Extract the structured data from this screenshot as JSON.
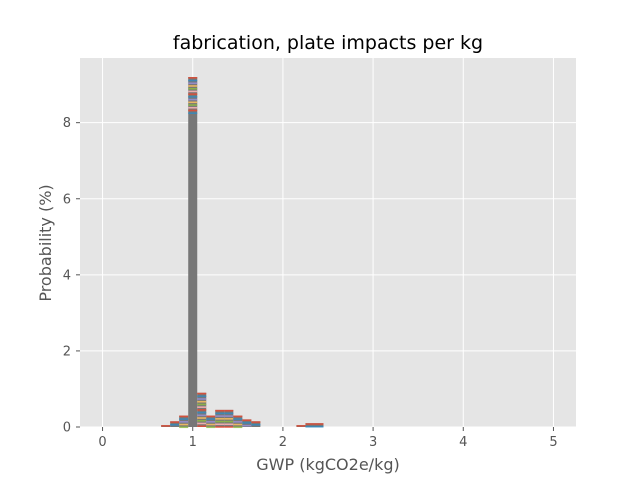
{
  "chart_data": {
    "type": "bar",
    "title": "fabrication, plate impacts per kg",
    "xlabel": "GWP (kgCO2e/kg)",
    "ylabel": "Probability (%)",
    "xlim": [
      -0.25,
      5.25
    ],
    "ylim": [
      0,
      9.7
    ],
    "xticks": [
      0,
      1,
      2,
      3,
      4,
      5
    ],
    "yticks": [
      0,
      2,
      4,
      6,
      8
    ],
    "grid": true,
    "style": "ggplot",
    "colors": {
      "background": "#e5e5e5",
      "grid": "#ffffff",
      "bars": "#777777",
      "stripes": [
        "#e24a33",
        "#348abd",
        "#988ed5",
        "#fbc15e",
        "#8eba42",
        "#ffb5b8"
      ]
    },
    "bin_width": 0.1,
    "bars": [
      {
        "x": 0.7,
        "height": 0.05
      },
      {
        "x": 0.8,
        "height": 0.15
      },
      {
        "x": 0.9,
        "height": 0.3
      },
      {
        "x": 1.0,
        "height": 9.2
      },
      {
        "x": 1.1,
        "height": 0.9
      },
      {
        "x": 1.2,
        "height": 0.3
      },
      {
        "x": 1.3,
        "height": 0.45
      },
      {
        "x": 1.4,
        "height": 0.45
      },
      {
        "x": 1.5,
        "height": 0.3
      },
      {
        "x": 1.6,
        "height": 0.2
      },
      {
        "x": 1.7,
        "height": 0.15
      },
      {
        "x": 2.2,
        "height": 0.05
      },
      {
        "x": 2.3,
        "height": 0.1
      },
      {
        "x": 2.4,
        "height": 0.1
      }
    ],
    "stripe_threshold": 8.2
  }
}
